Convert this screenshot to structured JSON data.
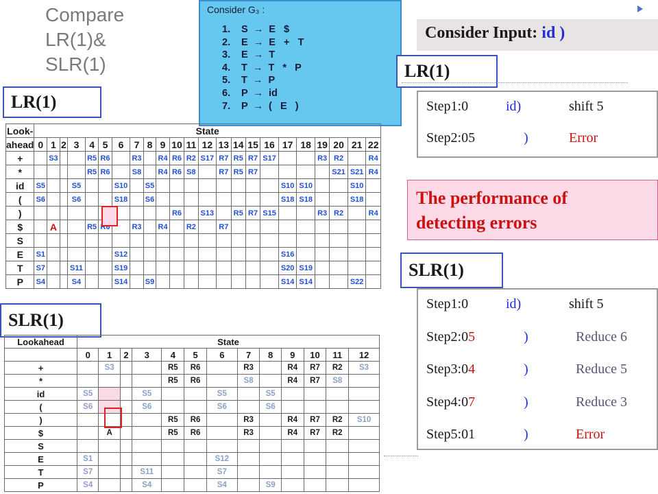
{
  "title": {
    "line1": "Compare",
    "line2": "LR(1)&",
    "line3": "SLR(1)"
  },
  "grammar": {
    "heading": "Consider G₃ :",
    "rules": [
      {
        "num": "1.",
        "text": "S  →  E   $"
      },
      {
        "num": "2.",
        "text": "E  →  E   +   T"
      },
      {
        "num": "3.",
        "text": "E  →  T"
      },
      {
        "num": "4.",
        "text": "T  →  T   *   P"
      },
      {
        "num": "5.",
        "text": "T  →  P"
      },
      {
        "num": "6.",
        "text": "P  →  id"
      },
      {
        "num": "7.",
        "text": "P  →  (   E   )"
      }
    ]
  },
  "input": {
    "prefix": "Consider Input:",
    "value": "id )"
  },
  "labels": {
    "lr_left": "LR(1)",
    "lr_right": "LR(1)",
    "slr_right": "SLR(1)",
    "slr_left": "SLR(1)"
  },
  "lr_steps": [
    {
      "label": "Step1:0",
      "input": "id)",
      "action": "shift 5"
    },
    {
      "label": "Step2:05",
      "input": ")",
      "action": "Error"
    }
  ],
  "slr_steps": [
    {
      "label_main": "Step1:0",
      "label_tail": "",
      "input": "id)",
      "action": "shift 5"
    },
    {
      "label_main": "Step2:0",
      "label_tail": "5",
      "input": ")",
      "action": "Reduce 6"
    },
    {
      "label_main": "Step3:0",
      "label_tail": "4",
      "input": ")",
      "action": "Reduce 5"
    },
    {
      "label_main": "Step4:0",
      "label_tail": "7",
      "input": ")",
      "action": "Reduce 3"
    },
    {
      "label_main": "Step5:01",
      "label_tail": "",
      "input": ")",
      "action": "Error"
    }
  ],
  "performance": {
    "line1": "The performance of",
    "line2": "detecting errors"
  },
  "lr_table": {
    "corner_top": "Look-",
    "corner_bottom": "ahead",
    "state_label": "State",
    "states": [
      "0",
      "1",
      "2",
      "3",
      "4",
      "5",
      "6",
      "7",
      "8",
      "9",
      "10",
      "11",
      "12",
      "13",
      "14",
      "15",
      "16",
      "17",
      "18",
      "19",
      "20",
      "21",
      "22"
    ],
    "rows": [
      {
        "la": "+",
        "cells": [
          "",
          "S3",
          "",
          "",
          "R5",
          "R6",
          "",
          "R3",
          "",
          "R4",
          "R6",
          "R2",
          "S17",
          "R7",
          "R5",
          "R7",
          "S17",
          "",
          "",
          "R3",
          "R2",
          "",
          "R4"
        ]
      },
      {
        "la": "*",
        "cells": [
          "",
          "",
          "",
          "",
          "R5",
          "R6",
          "",
          "S8",
          "",
          "R4",
          "R6",
          "S8",
          "",
          "R7",
          "R5",
          "R7",
          "",
          "",
          "",
          "",
          "S21",
          "S21",
          "R4"
        ]
      },
      {
        "la": "id",
        "cells": [
          "S5",
          "",
          "",
          "S5",
          "",
          "",
          "S10",
          "",
          "S5",
          "",
          "",
          "",
          "",
          "",
          "",
          "",
          "",
          "S10",
          "S10",
          "",
          "",
          "S10",
          ""
        ]
      },
      {
        "la": "(",
        "cells": [
          "S6",
          "",
          "",
          "S6",
          "",
          "",
          "S18",
          "",
          "S6",
          "",
          "",
          "",
          "",
          "",
          "",
          "",
          "",
          "S18",
          "S18",
          "",
          "",
          "S18",
          ""
        ]
      },
      {
        "la": ")",
        "cells": [
          "",
          "",
          "",
          "",
          "",
          "",
          "",
          "",
          "",
          "",
          "R6",
          "",
          "S13",
          "",
          "R5",
          "R7",
          "S15",
          "",
          "",
          "R3",
          "R2",
          "",
          "R4"
        ]
      },
      {
        "la": "$",
        "cells": [
          "",
          "A",
          "",
          "",
          "R5",
          "R6",
          "",
          "R3",
          "",
          "R4",
          "",
          "R2",
          "",
          "R7",
          "",
          "",
          "",
          "",
          "",
          "",
          "",
          "",
          ""
        ]
      },
      {
        "la": "S",
        "cells": [
          "",
          "",
          "",
          "",
          "",
          "",
          "",
          "",
          "",
          "",
          "",
          "",
          "",
          "",
          "",
          "",
          "",
          "",
          "",
          "",
          "",
          "",
          ""
        ]
      },
      {
        "la": "E",
        "cells": [
          "S1",
          "",
          "",
          "",
          "",
          "",
          "S12",
          "",
          "",
          "",
          "",
          "",
          "",
          "",
          "",
          "",
          "",
          "S16",
          "",
          "",
          "",
          "",
          ""
        ]
      },
      {
        "la": "T",
        "cells": [
          "S7",
          "",
          "",
          "S11",
          "",
          "",
          "S19",
          "",
          "",
          "",
          "",
          "",
          "",
          "",
          "",
          "",
          "",
          "S20",
          "S19",
          "",
          "",
          "",
          ""
        ]
      },
      {
        "la": "P",
        "cells": [
          "S4",
          "",
          "",
          "S4",
          "",
          "",
          "S14",
          "",
          "S9",
          "",
          "",
          "",
          "",
          "",
          "",
          "",
          "",
          "S14",
          "S14",
          "",
          "",
          "S22",
          ""
        ]
      }
    ]
  },
  "slr_table": {
    "corner": "Lookahead",
    "state_label": "State",
    "states": [
      "0",
      "1",
      "2",
      "3",
      "4",
      "5",
      "6",
      "7",
      "8",
      "9",
      "10",
      "11",
      "12"
    ],
    "rows": [
      {
        "la": "+",
        "cells": [
          "",
          "S3",
          "",
          "",
          "R5",
          "R6",
          "",
          "R3",
          "",
          "R4",
          "R7",
          "R2",
          "S3"
        ]
      },
      {
        "la": "*",
        "cells": [
          "",
          "",
          "",
          "",
          "R5",
          "R6",
          "",
          "S8",
          "",
          "R4",
          "R7",
          "S8",
          ""
        ]
      },
      {
        "la": "id",
        "cells": [
          "S5",
          "",
          "",
          "S5",
          "",
          "",
          "S5",
          "",
          "S5",
          "",
          "",
          "",
          ""
        ]
      },
      {
        "la": "(",
        "cells": [
          "S6",
          "",
          "",
          "S6",
          "",
          "",
          "S6",
          "",
          "S6",
          "",
          "",
          "",
          ""
        ]
      },
      {
        "la": ")",
        "cells": [
          "",
          "",
          "",
          "",
          "R5",
          "R6",
          "",
          "R3",
          "",
          "R4",
          "R7",
          "R2",
          "S10"
        ]
      },
      {
        "la": "$",
        "cells": [
          "",
          "A",
          "",
          "",
          "R5",
          "R6",
          "",
          "R3",
          "",
          "R4",
          "R7",
          "R2",
          ""
        ]
      },
      {
        "la": "S",
        "cells": [
          "",
          "",
          "",
          "",
          "",
          "",
          "",
          "",
          "",
          "",
          "",
          "",
          ""
        ]
      },
      {
        "la": "E",
        "cells": [
          "S1",
          "",
          "",
          "",
          "",
          "",
          "S12",
          "",
          "",
          "",
          "",
          "",
          ""
        ]
      },
      {
        "la": "T",
        "cells": [
          "S7",
          "",
          "",
          "S11",
          "",
          "",
          "S7",
          "",
          "",
          "",
          "",
          "",
          ""
        ]
      },
      {
        "la": "P",
        "cells": [
          "S4",
          "",
          "",
          "S4",
          "",
          "",
          "S4",
          "",
          "S9",
          "",
          "",
          "",
          ""
        ]
      }
    ]
  }
}
